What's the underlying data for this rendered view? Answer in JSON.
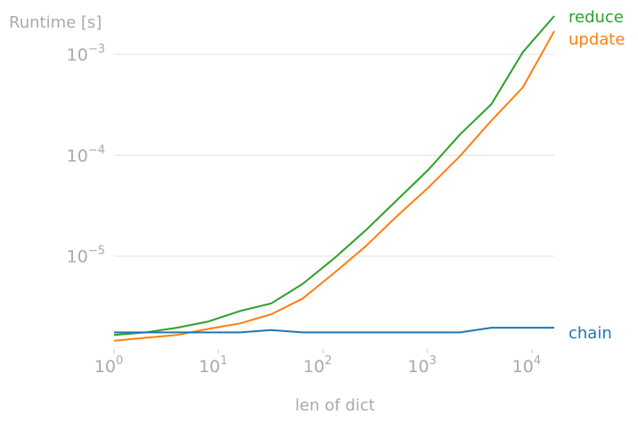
{
  "chart_data": {
    "type": "line",
    "title": "",
    "xlabel": "len of dict",
    "ylabel": "Runtime [s]",
    "xscale": "log",
    "yscale": "log",
    "xlim": [
      1,
      16384
    ],
    "ylim": [
      1.2e-06,
      0.0024
    ],
    "x_ticks": [
      {
        "base": "10",
        "exp": "0",
        "value": 1
      },
      {
        "base": "10",
        "exp": "1",
        "value": 10
      },
      {
        "base": "10",
        "exp": "2",
        "value": 100
      },
      {
        "base": "10",
        "exp": "3",
        "value": 1000
      },
      {
        "base": "10",
        "exp": "4",
        "value": 10000
      }
    ],
    "y_ticks": [
      {
        "base": "10",
        "exp": "−3",
        "value": 0.001
      },
      {
        "base": "10",
        "exp": "−4",
        "value": 0.0001
      },
      {
        "base": "10",
        "exp": "−5",
        "value": 1e-05
      }
    ],
    "grid": "horizontal",
    "legend": "direct labels at line ends",
    "x": [
      1,
      2,
      4,
      8,
      16,
      32,
      64,
      128,
      256,
      512,
      1024,
      2048,
      4096,
      8192,
      16384
    ],
    "series": [
      {
        "name": "reduce",
        "color": "#2ca02c",
        "values": [
          1.65e-06,
          1.75e-06,
          1.95e-06,
          2.25e-06,
          2.85e-06,
          3.4e-06,
          5.3e-06,
          9.5e-06,
          1.8e-05,
          3.6e-05,
          7.2e-05,
          0.00016,
          0.00032,
          0.00105,
          0.0028
        ]
      },
      {
        "name": "update",
        "color": "#ff7f0e",
        "values": [
          1.45e-06,
          1.55e-06,
          1.65e-06,
          1.9e-06,
          2.15e-06,
          2.65e-06,
          3.8e-06,
          6.8e-06,
          1.25e-05,
          2.5e-05,
          4.8e-05,
          9.8e-05,
          0.00022,
          0.00047,
          0.0017
        ]
      },
      {
        "name": "chain",
        "color": "#1f77b4",
        "values": [
          1.75e-06,
          1.75e-06,
          1.75e-06,
          1.75e-06,
          1.75e-06,
          1.85e-06,
          1.75e-06,
          1.75e-06,
          1.75e-06,
          1.75e-06,
          1.75e-06,
          1.75e-06,
          1.95e-06,
          1.95e-06,
          1.95e-06
        ]
      }
    ]
  }
}
